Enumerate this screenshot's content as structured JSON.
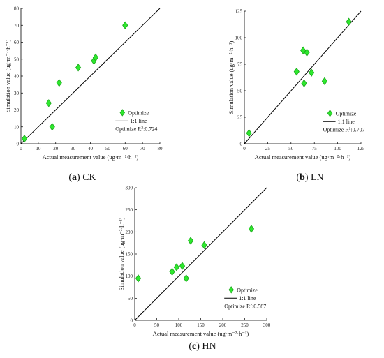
{
  "colors": {
    "marker_fill": "#2ee82e",
    "marker_stroke": "#1aa51a",
    "axis": "#000000",
    "line": "#000000"
  },
  "chart_data": [
    {
      "type": "scatter",
      "panel_letter": "a",
      "panel_name": "CK",
      "xlabel": "Actual measurement value (ug·m⁻²·h⁻¹)",
      "ylabel": "Simulation value (ug·m⁻²·h⁻¹)",
      "xlim": [
        0,
        80
      ],
      "ylim": [
        0,
        80
      ],
      "xticks": [
        0,
        10,
        20,
        30,
        40,
        50,
        60,
        70,
        80
      ],
      "yticks": [
        0,
        10,
        20,
        30,
        40,
        50,
        60,
        70,
        80
      ],
      "series": [
        {
          "name": "Optimize",
          "marker": "diamond",
          "x": [
            2,
            16,
            18,
            22,
            33,
            42,
            43,
            60
          ],
          "y": [
            3,
            24,
            10,
            36,
            45,
            49,
            51,
            70
          ]
        }
      ],
      "reference_line": {
        "label": "1:1 line"
      },
      "r2_label": "Optimize R",
      "r2_value": ":0.724",
      "grid": false,
      "legend_position": "lower-right"
    },
    {
      "type": "scatter",
      "panel_letter": "b",
      "panel_name": "LN",
      "xlabel": "Actual measurement value (ug·m⁻²·h⁻¹)",
      "ylabel": "Simulation value (ug·m⁻²·h⁻¹)",
      "xlim": [
        0,
        125
      ],
      "ylim": [
        0,
        125
      ],
      "xticks": [
        0,
        25,
        50,
        75,
        100,
        125
      ],
      "yticks": [
        0,
        25,
        50,
        75,
        100,
        125
      ],
      "series": [
        {
          "name": "Optimize",
          "marker": "diamond",
          "x": [
            5,
            56,
            63,
            64,
            67,
            72,
            86,
            112
          ],
          "y": [
            10,
            68,
            88,
            57,
            86,
            67,
            59,
            115
          ]
        }
      ],
      "reference_line": {
        "label": "1:1 line"
      },
      "r2_label": "Optimize R",
      "r2_value": ":0.707",
      "grid": false,
      "legend_position": "lower-right"
    },
    {
      "type": "scatter",
      "panel_letter": "c",
      "panel_name": "HN",
      "xlabel": "Actual measurement value (ug·m⁻²·h⁻¹)",
      "ylabel": "Simulation value (ug·m⁻²·h⁻¹)",
      "xlim": [
        0,
        300
      ],
      "ylim": [
        0,
        300
      ],
      "xticks": [
        0,
        50,
        100,
        150,
        200,
        250,
        300
      ],
      "yticks": [
        0,
        50,
        100,
        150,
        200,
        250,
        300
      ],
      "series": [
        {
          "name": "Optimize",
          "marker": "diamond",
          "x": [
            8,
            85,
            95,
            108,
            117,
            127,
            158,
            265
          ],
          "y": [
            95,
            110,
            120,
            123,
            95,
            180,
            170,
            207
          ]
        }
      ],
      "reference_line": {
        "label": "1:1 line"
      },
      "r2_label": "Optimize R",
      "r2_value": ":0.587",
      "grid": false,
      "legend_position": "lower-right"
    }
  ]
}
